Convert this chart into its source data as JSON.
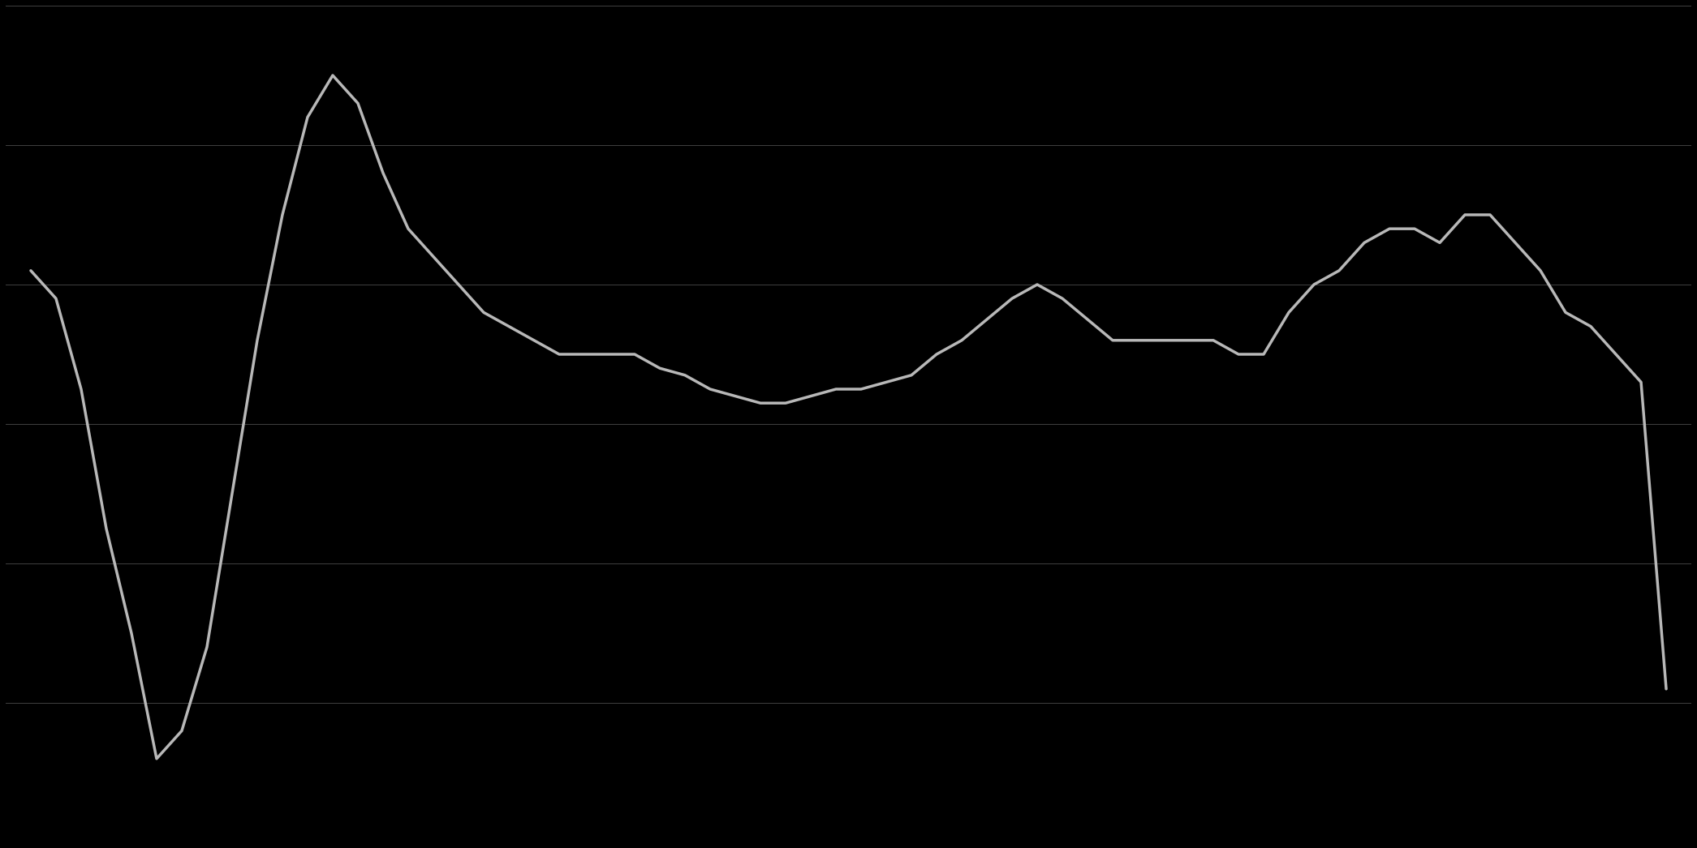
{
  "background_color": "#000000",
  "line_color": "#b8b8b8",
  "grid_color": "#404040",
  "line_width": 2.5,
  "x_values": [
    2008.0,
    2008.25,
    2008.5,
    2008.75,
    2009.0,
    2009.25,
    2009.5,
    2009.75,
    2010.0,
    2010.25,
    2010.5,
    2010.75,
    2011.0,
    2011.25,
    2011.5,
    2011.75,
    2012.0,
    2012.25,
    2012.5,
    2012.75,
    2013.0,
    2013.25,
    2013.5,
    2013.75,
    2014.0,
    2014.25,
    2014.5,
    2014.75,
    2015.0,
    2015.25,
    2015.5,
    2015.75,
    2016.0,
    2016.25,
    2016.5,
    2016.75,
    2017.0,
    2017.25,
    2017.5,
    2017.75,
    2018.0,
    2018.25,
    2018.5,
    2018.75,
    2019.0,
    2019.25,
    2019.5,
    2019.75,
    2020.0,
    2020.25,
    2020.5,
    2020.75,
    2021.0,
    2021.25,
    2021.5,
    2021.75,
    2022.0,
    2022.25,
    2022.5,
    2022.75,
    2023.0,
    2023.25,
    2023.5,
    2023.75,
    2024.0,
    2024.25
  ],
  "y_values": [
    22,
    18,
    5,
    -15,
    -30,
    -48,
    -44,
    -32,
    -10,
    12,
    30,
    44,
    50,
    46,
    36,
    28,
    24,
    20,
    16,
    14,
    12,
    10,
    10,
    10,
    10,
    8,
    7,
    5,
    4,
    3,
    3,
    4,
    5,
    5,
    6,
    7,
    10,
    12,
    15,
    18,
    20,
    18,
    15,
    12,
    12,
    12,
    12,
    12,
    10,
    10,
    16,
    20,
    22,
    26,
    28,
    28,
    26,
    30,
    30,
    26,
    22,
    16,
    14,
    10,
    6,
    -38
  ],
  "ylim": [
    -60,
    60
  ],
  "ytick_values": [
    -60,
    -40,
    -20,
    0,
    20,
    40,
    60
  ],
  "xlim": [
    2007.75,
    2024.5
  ],
  "xtick_years": [
    2008,
    2010,
    2012,
    2014,
    2016,
    2018,
    2020,
    2022,
    2024
  ]
}
